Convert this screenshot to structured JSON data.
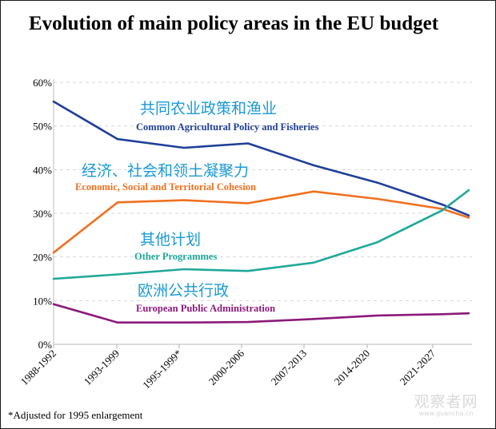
{
  "chart_data": {
    "type": "line",
    "title": "Evolution of main policy areas in the EU budget",
    "xlabel": "",
    "ylabel": "",
    "categories": [
      "1988-1992",
      "1993-1999",
      "1995-1999*",
      "2000-2006",
      "2007-2013",
      "2014-2020",
      "2021-2027"
    ],
    "x_points": [
      "1988-1992",
      "1993-1999",
      "1995-1999*",
      "2000-2006",
      "2007-2013",
      "2014-2020",
      "2021-2027",
      "2021-2027 end"
    ],
    "yticks": [
      "0%",
      "10%",
      "20%",
      "30%",
      "40%",
      "50%",
      "60%"
    ],
    "ylim": [
      0,
      60
    ],
    "grid": true,
    "series": [
      {
        "name": "Common Agricultural Policy and Fisheries",
        "name_cn": "共同农业政策和渔业",
        "color": "#1f3f99",
        "values": [
          55.6,
          47.0,
          45.0,
          46.0,
          41.0,
          37.0,
          32.0,
          29.5
        ]
      },
      {
        "name": "Economic, Social and Territorial Cohesion",
        "name_cn": "经济、社会和领土凝聚力",
        "color": "#f07020",
        "values": [
          21.0,
          32.5,
          33.0,
          32.3,
          35.0,
          33.3,
          31.0,
          29.0
        ]
      },
      {
        "name": "Other Programmes",
        "name_cn": "其他计划",
        "color": "#20a89a",
        "values": [
          15.0,
          16.0,
          17.2,
          16.8,
          18.7,
          23.4,
          30.7,
          35.3
        ]
      },
      {
        "name": "European Public Administration",
        "name_cn": "欧洲公共行政",
        "color": "#8b1a7a",
        "values": [
          9.2,
          5.0,
          5.0,
          5.1,
          5.8,
          6.6,
          6.9,
          7.1
        ]
      }
    ],
    "label_cn_color": "#1a9ad6",
    "legend": "inline-labels"
  },
  "footnote": "*Adjusted for 1995 enlargement",
  "watermark": {
    "cn": "观察者网",
    "url": "www.guancha.cn"
  }
}
